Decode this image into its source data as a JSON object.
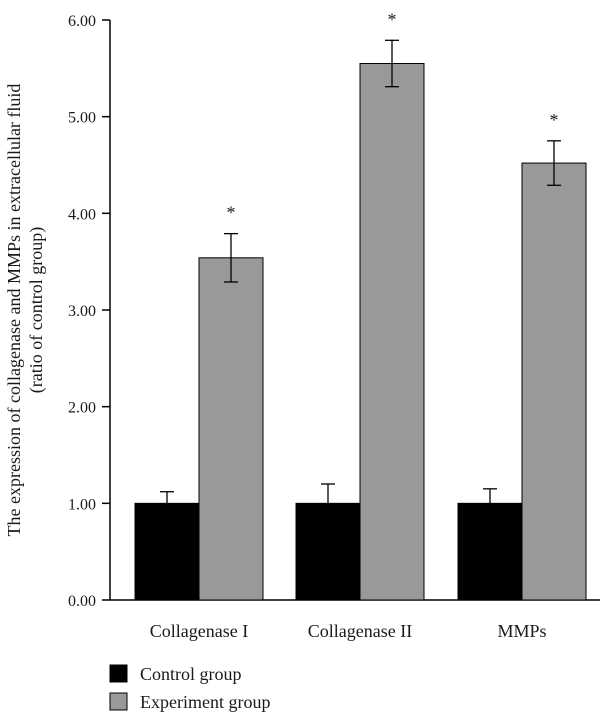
{
  "chart_data": {
    "type": "bar",
    "categories": [
      "Collagenase I",
      "Collagenase II",
      "MMPs"
    ],
    "series": [
      {
        "name": "Control group",
        "color": "#000000",
        "values": [
          1.0,
          1.0,
          1.0
        ],
        "errors": [
          0.12,
          0.2,
          0.15
        ]
      },
      {
        "name": "Experiment group",
        "color": "#999999",
        "values": [
          3.54,
          5.55,
          4.52
        ],
        "errors": [
          0.25,
          0.24,
          0.23
        ]
      }
    ],
    "significance_marks": [
      "*",
      "*",
      "*"
    ],
    "ylabel_line1": "The expression of collagenase and MMPs in extracellular fluid",
    "ylabel_line2": "(ratio of control group)",
    "yticks": [
      "0.00",
      "1.00",
      "2.00",
      "3.00",
      "4.00",
      "5.00",
      "6.00"
    ],
    "ylim": [
      0,
      6
    ],
    "grid": false,
    "legend_position": "bottom-left"
  }
}
